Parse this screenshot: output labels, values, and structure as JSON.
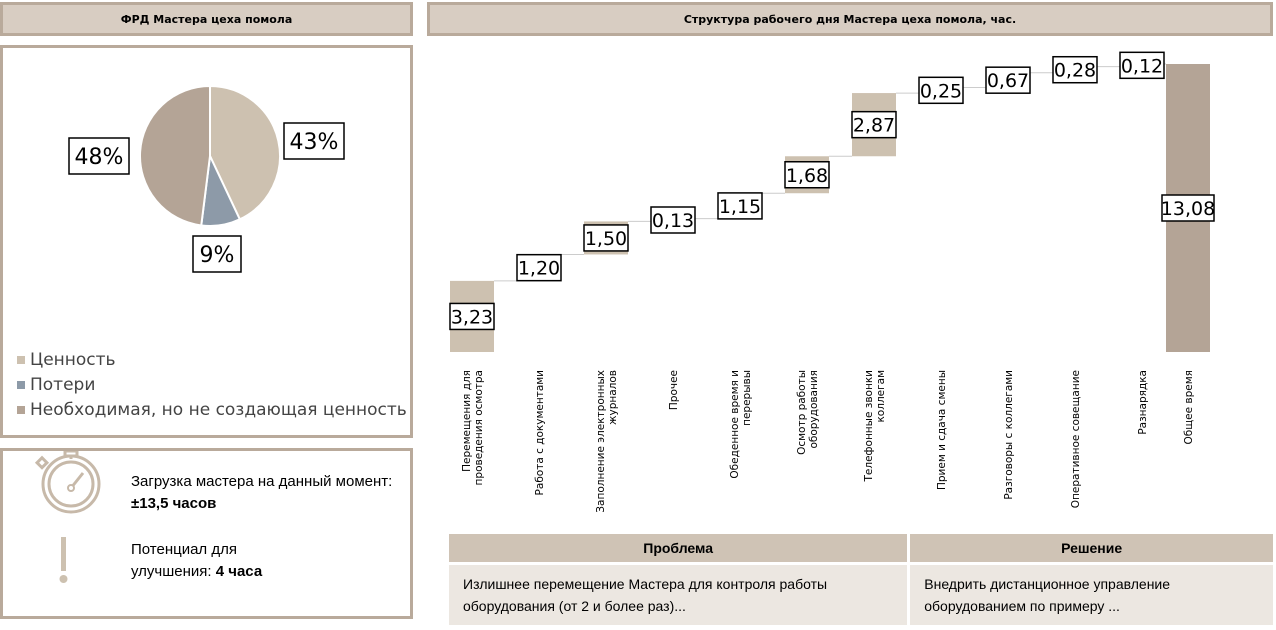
{
  "left_title": "ФРД Мастера цеха помола",
  "right_title": "Структура рабочего дня Мастера цеха помола, час.",
  "pie": {
    "type": "pie",
    "slices": [
      {
        "name": "Ценность",
        "value": 43,
        "label": "43%",
        "color": "#cdc1b0"
      },
      {
        "name": "Потери",
        "value": 9,
        "label": "9%",
        "color": "#8d9aa8"
      },
      {
        "name": "Необходимая, но не создающая ценность",
        "value": 48,
        "label": "48%",
        "color": "#b4a496"
      }
    ]
  },
  "info": {
    "load_label": "Загрузка мастера на данный момент:",
    "load_value": "±13,5 часов",
    "potential_label": "Потенциал для улучшения: ",
    "potential_value": "4 часа"
  },
  "chart_data": {
    "type": "waterfall",
    "title": "Структура рабочего дня Мастера цеха помола, час.",
    "categories": [
      [
        "Перемещения для",
        "проведения осмотра"
      ],
      [
        "Работа с документами"
      ],
      [
        "Заполнение электронных",
        "журналов"
      ],
      [
        "Прочее"
      ],
      [
        "Обеденное время и",
        "перерывы"
      ],
      [
        "Осмотр работы",
        "оборудования"
      ],
      [
        "Телефонные звонки",
        "коллегам"
      ],
      [
        "Прием и сдача смены"
      ],
      [
        "Разговоры с коллегами"
      ],
      [
        "Оперативное совещание"
      ],
      [
        "Разнарядка"
      ],
      [
        "Общее время"
      ]
    ],
    "values": [
      3.23,
      1.2,
      1.5,
      0.13,
      1.15,
      1.68,
      2.87,
      0.25,
      0.67,
      0.28,
      0.12,
      13.08
    ],
    "labels": [
      "3,23",
      "1,20",
      "1,50",
      "0,13",
      "1,15",
      "1,68",
      "2,87",
      "0,25",
      "0,67",
      "0,28",
      "0,12",
      "13,08"
    ],
    "colors": [
      "#cdc1b0",
      "#cdc1b0",
      "#cdc1b0",
      "#cdc1b0",
      "#cdc1b0",
      "#cdc1b0",
      "#cdc1b0",
      "#cdc1b0",
      "#cdc1b0",
      "#cdc1b0",
      "#cdc1b0",
      "#b4a496"
    ],
    "ylim": [
      0,
      13.08
    ]
  },
  "table": {
    "headers": [
      "Проблема",
      "Решение"
    ],
    "rows": [
      [
        "Излишнее перемещение Мастера для контроля работы оборудования (от 2 и более раз)...",
        "Внедрить дистанционное управление оборудованием по примеру ..."
      ]
    ]
  }
}
